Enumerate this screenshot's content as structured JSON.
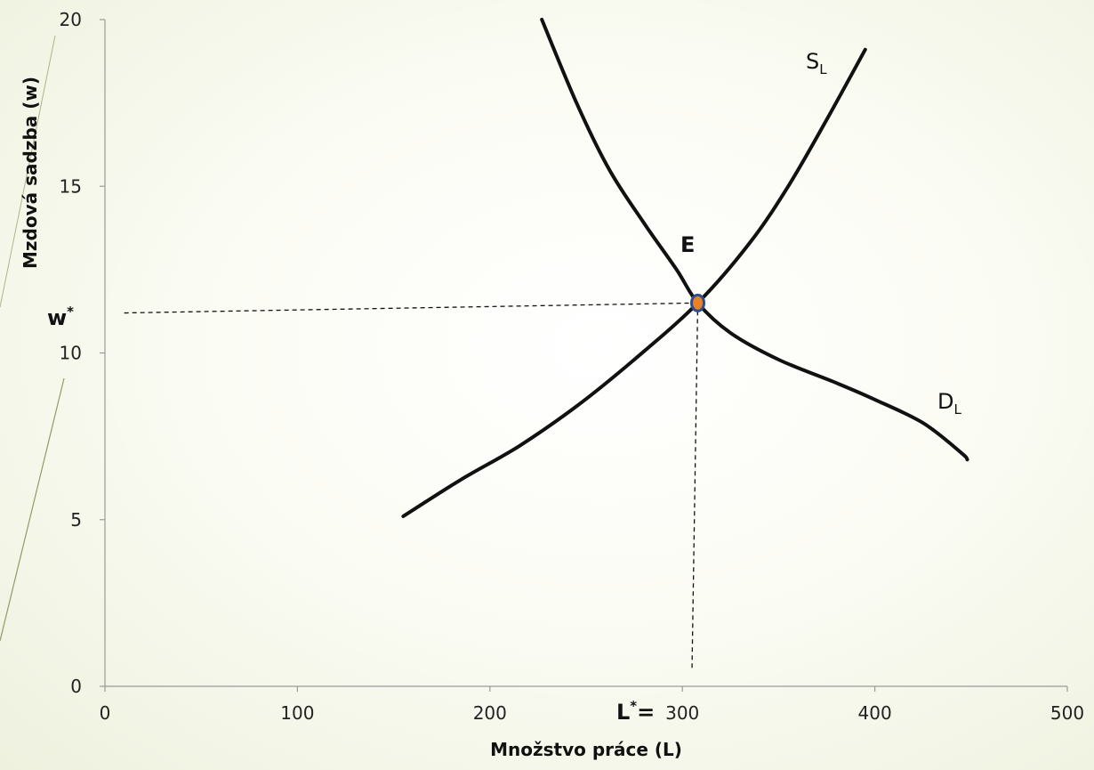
{
  "chart_data": {
    "type": "line",
    "title": "",
    "xlabel": "Množstvo práce (L)",
    "ylabel": "Mzdová sadzba (w)",
    "xlim": [
      0,
      500
    ],
    "ylim": [
      0,
      20
    ],
    "x_ticks": [
      "0",
      "100",
      "200",
      "300",
      "400",
      "500"
    ],
    "y_ticks": [
      "0",
      "5",
      "10",
      "15",
      "20"
    ],
    "grid": false,
    "series": [
      {
        "name": "D",
        "subscript": "L",
        "color": "#111111",
        "points": [
          [
            227,
            20.0
          ],
          [
            245,
            17.5
          ],
          [
            262,
            15.5
          ],
          [
            280,
            13.9
          ],
          [
            297,
            12.5
          ],
          [
            308,
            11.5
          ],
          [
            325,
            10.6
          ],
          [
            350,
            9.8
          ],
          [
            380,
            9.1
          ],
          [
            400,
            8.6
          ],
          [
            425,
            7.9
          ],
          [
            445,
            7.0
          ],
          [
            448,
            6.8
          ]
        ]
      },
      {
        "name": "S",
        "subscript": "L",
        "color": "#111111",
        "points": [
          [
            155,
            5.1
          ],
          [
            185,
            6.2
          ],
          [
            215,
            7.2
          ],
          [
            245,
            8.4
          ],
          [
            275,
            9.8
          ],
          [
            308,
            11.5
          ],
          [
            335,
            13.3
          ],
          [
            355,
            15.0
          ],
          [
            375,
            17.0
          ],
          [
            395,
            19.1
          ]
        ]
      }
    ],
    "guides": [
      {
        "from": [
          10,
          11.2
        ],
        "to": [
          308,
          11.5
        ]
      },
      {
        "from": [
          308,
          11.5
        ],
        "to": [
          305,
          0.5
        ]
      }
    ],
    "equilibrium": {
      "x": 308,
      "y": 11.5,
      "label": "E",
      "fill": "#e8822a",
      "stroke": "#2f4d8a"
    },
    "annotations": {
      "w_star": {
        "base": "w",
        "sup": "*"
      },
      "l_star": {
        "base": "L",
        "sup": "*",
        "tail": "="
      }
    }
  }
}
